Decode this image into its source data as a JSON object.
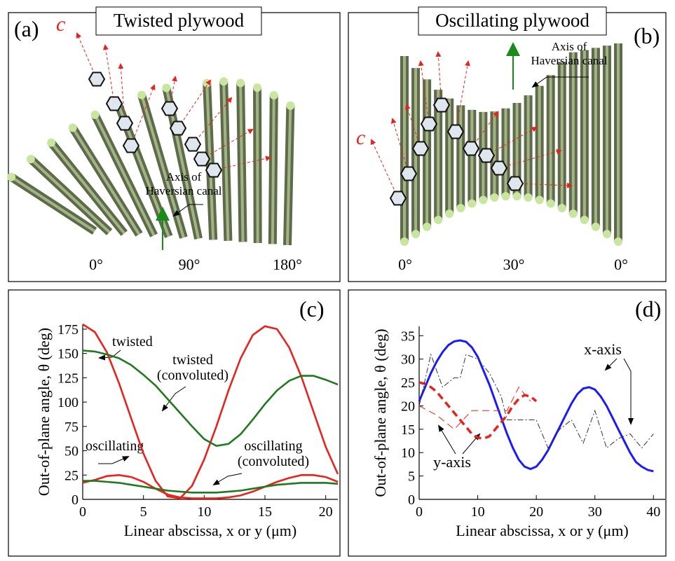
{
  "diagrams": [
    {
      "label": "(a)",
      "title": "Twisted plywood",
      "c_label": "c",
      "axis_label": [
        "Axis of",
        "Haversian canal"
      ],
      "angles": [
        "0°",
        "90°",
        "180°"
      ]
    },
    {
      "label": "(b)",
      "title": "Oscillating plywood",
      "c_label": "c",
      "axis_label": [
        "Axis of",
        "Haversian canal"
      ],
      "angles": [
        "0°",
        "30°",
        "0°"
      ]
    }
  ],
  "chart_data": [
    {
      "type": "line",
      "panel_label": "(c)",
      "x_label": "Linear abscissa, x or y (μm)",
      "y_label": "Out-of-plane angle, θ (deg)",
      "xlim": [
        0,
        21
      ],
      "ylim": [
        0,
        180
      ],
      "xticks": [
        0,
        5,
        10,
        15,
        20
      ],
      "yticks": [
        0,
        25,
        50,
        75,
        100,
        125,
        150,
        175
      ],
      "series": [
        {
          "color": "#e8231c",
          "dash": "solid",
          "x": [
            0,
            1,
            2,
            3,
            4,
            5,
            6,
            7,
            8,
            9,
            10,
            11,
            12,
            13,
            14,
            15,
            16,
            17,
            18,
            19,
            20,
            21
          ],
          "values": [
            180,
            172,
            151,
            119,
            83,
            47,
            19,
            3,
            1,
            14,
            41,
            75,
            112,
            145,
            169,
            178,
            175,
            156,
            126,
            90,
            54,
            26
          ]
        },
        {
          "color": "#1f7a1f",
          "dash": "solid",
          "x": [
            0,
            1,
            2,
            3,
            4,
            5,
            6,
            7,
            8,
            9,
            10,
            11,
            12,
            13,
            14,
            15,
            16,
            17,
            18,
            19,
            20,
            21
          ],
          "values": [
            153,
            152,
            149,
            145,
            138,
            128,
            117,
            103,
            89,
            75,
            62,
            55,
            57,
            67,
            82,
            98,
            112,
            122,
            127,
            127,
            123,
            118
          ]
        },
        {
          "color": "#e8231c",
          "dash": "solid",
          "x": [
            0,
            1,
            2,
            3,
            4,
            5,
            6,
            7,
            8,
            9,
            10,
            11,
            12,
            13,
            14,
            15,
            16,
            17,
            18,
            19,
            20,
            21
          ],
          "values": [
            17,
            20,
            24,
            25,
            23,
            18,
            11,
            5,
            2,
            1,
            1,
            1,
            2,
            4,
            8,
            13,
            18,
            22,
            25,
            25,
            23,
            18
          ]
        },
        {
          "color": "#1f7a1f",
          "dash": "solid",
          "x": [
            0,
            1,
            2,
            3,
            4,
            5,
            6,
            7,
            8,
            9,
            10,
            11,
            12,
            13,
            14,
            15,
            16,
            17,
            18,
            19,
            20,
            21
          ],
          "values": [
            19,
            19,
            18,
            17,
            15,
            13,
            11,
            9,
            8,
            7,
            7,
            7,
            8,
            9,
            11,
            13,
            15,
            16,
            17,
            17,
            17,
            16
          ]
        }
      ],
      "annotations": [
        [
          "twisted"
        ],
        [
          "twisted",
          "(convoluted)"
        ],
        [
          "oscillating"
        ],
        [
          "oscillating",
          "(convoluted)"
        ]
      ]
    },
    {
      "type": "line",
      "panel_label": "(d)",
      "x_label": "Linear abscissa, x or y (μm)",
      "y_label": "Out-of-plane angle, θ (deg)",
      "xlim": [
        0,
        42
      ],
      "ylim": [
        0,
        37
      ],
      "xticks": [
        0,
        10,
        20,
        30,
        40
      ],
      "yticks": [
        0,
        5,
        10,
        15,
        20,
        25,
        30,
        35
      ],
      "series": [
        {
          "color": "#1a1aff",
          "dash": "solid",
          "width": 3,
          "x": [
            0,
            1,
            2,
            3,
            4,
            5,
            6,
            7,
            8,
            9,
            10,
            11,
            12,
            13,
            14,
            15,
            16,
            17,
            18,
            19,
            20,
            21,
            22,
            23,
            24,
            25,
            26,
            27,
            28,
            29,
            30,
            31,
            32,
            33,
            34,
            35,
            36,
            37,
            38,
            39,
            40
          ],
          "values": [
            21,
            24,
            27,
            29.5,
            31.5,
            33,
            33.8,
            34,
            33.7,
            32.5,
            30.5,
            27.5,
            24.5,
            21,
            17.5,
            14,
            11,
            8.5,
            7,
            6.5,
            7,
            8.5,
            10.5,
            13,
            15.5,
            18,
            20.5,
            22.5,
            23.7,
            24,
            23.5,
            22,
            20,
            17.5,
            15,
            12.5,
            10,
            8,
            7,
            6.3,
            6
          ]
        },
        {
          "color": "#e8231c",
          "dash": "dashed",
          "width": 3.5,
          "x": [
            0,
            1,
            2,
            3,
            4,
            5,
            6,
            7,
            8,
            9,
            10,
            11,
            12,
            13,
            14,
            15,
            16,
            17,
            18,
            19,
            20
          ],
          "values": [
            25,
            24.7,
            24,
            23,
            21.5,
            20,
            18.5,
            17,
            15.5,
            14,
            13.2,
            13,
            13.5,
            15,
            16.5,
            18,
            20,
            21.5,
            22.3,
            22,
            21
          ]
        },
        {
          "color": "#333333",
          "dash": "dashdot",
          "width": 1,
          "x": [
            0,
            2,
            4,
            6,
            7,
            8,
            10,
            12,
            14,
            15,
            16,
            18,
            20,
            22,
            23,
            24,
            26,
            28,
            30,
            32,
            34,
            36,
            38,
            40
          ],
          "values": [
            20,
            31,
            24,
            26,
            26,
            31,
            30,
            27,
            22,
            17,
            17,
            17,
            17,
            11,
            13,
            15,
            17,
            12,
            19,
            11,
            13,
            14,
            11,
            14
          ]
        },
        {
          "color": "#e8231c",
          "dash": "dashed",
          "width": 1,
          "x": [
            0,
            3,
            6,
            9,
            12,
            15,
            17,
            19
          ],
          "values": [
            20,
            18,
            15,
            19,
            19,
            19,
            24,
            21
          ]
        }
      ],
      "annotations": [
        [
          "x-axis"
        ],
        [
          "y-axis"
        ]
      ]
    }
  ]
}
